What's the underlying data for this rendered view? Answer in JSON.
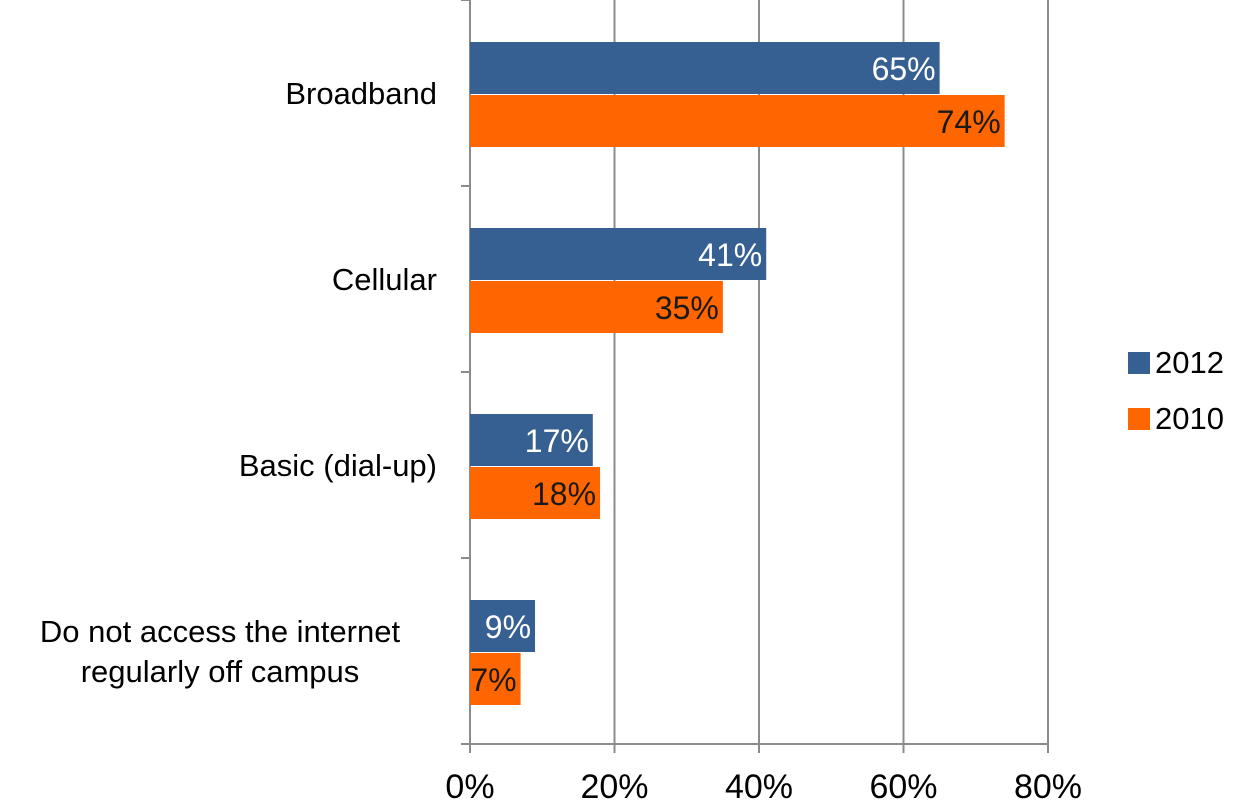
{
  "chart_data": {
    "type": "bar",
    "orientation": "horizontal",
    "categories": [
      "Broadband",
      "Cellular",
      "Basic (dial-up)",
      "Do not access the internet regularly off campus"
    ],
    "category_label_lines": [
      [
        "Broadband"
      ],
      [
        "Cellular"
      ],
      [
        "Basic (dial-up)"
      ],
      [
        "Do not access the internet",
        "regularly off campus"
      ]
    ],
    "series": [
      {
        "name": "2012",
        "color": "#376092",
        "values": [
          65,
          41,
          17,
          9
        ],
        "labels": [
          "65%",
          "41%",
          "17%",
          "9%"
        ]
      },
      {
        "name": "2010",
        "color": "#ff6600",
        "values": [
          74,
          35,
          18,
          7
        ],
        "labels": [
          "74%",
          "35%",
          "18%",
          "7%"
        ]
      }
    ],
    "xlim": [
      0,
      80
    ],
    "x_ticks": [
      0,
      20,
      40,
      60,
      80
    ],
    "x_tick_labels": [
      "0%",
      "20%",
      "40%",
      "60%",
      "80%"
    ],
    "grid": "vertical",
    "legend_position": "right",
    "title": "",
    "xlabel": "",
    "ylabel": ""
  }
}
